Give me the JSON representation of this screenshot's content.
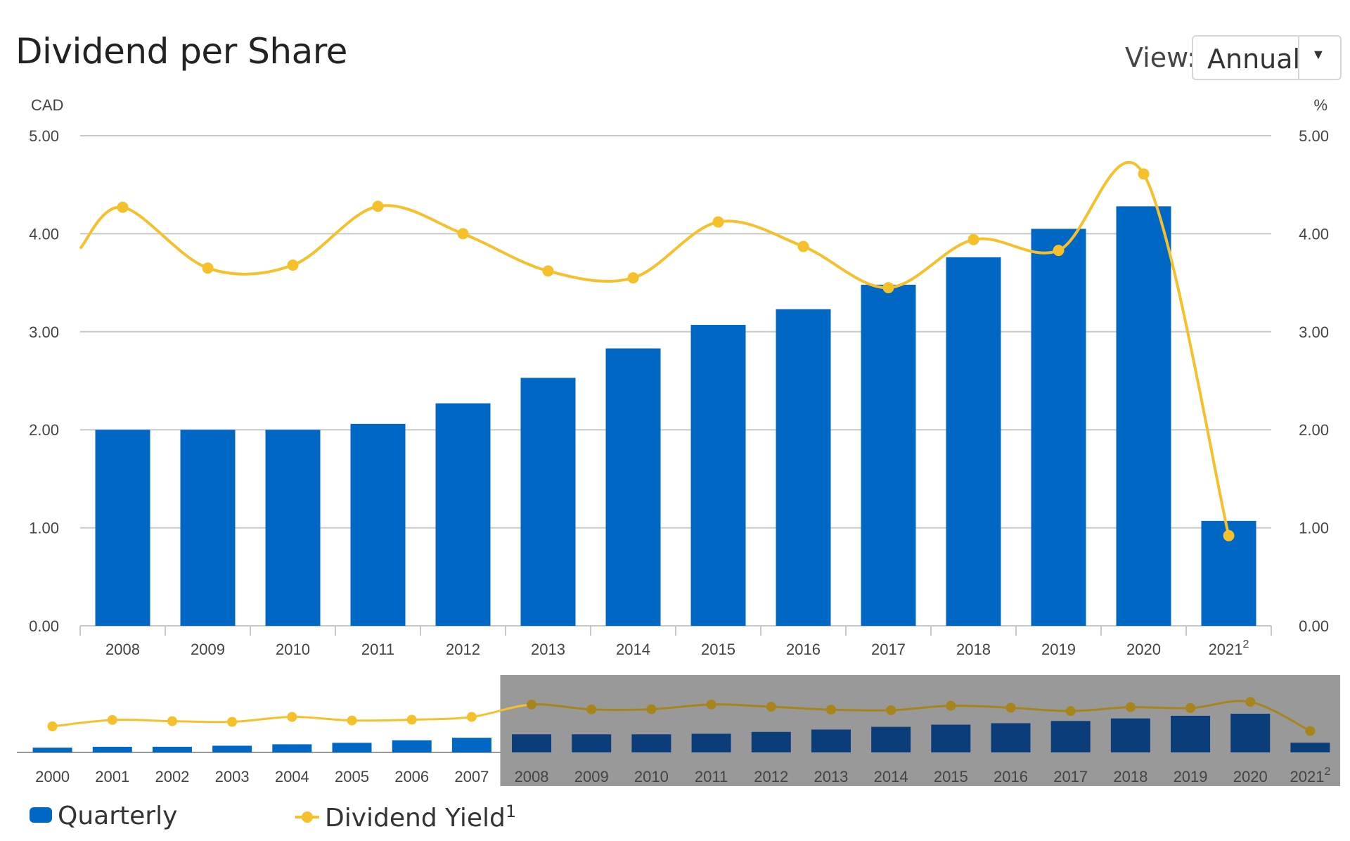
{
  "header": {
    "title": "Dividend per Share",
    "view_label": "View:",
    "view_value": "Annual"
  },
  "legend": {
    "quarterly": "Quarterly",
    "yield": "Dividend Yield",
    "yield_footnote": "1"
  },
  "colors": {
    "bar": "#0067c5",
    "bar_dark": "#0a3d7a",
    "line": "#f5c02a",
    "line_dark": "#a8841c",
    "navigator_shade": "#999999",
    "grid": "#c8c8c8"
  },
  "chart_data": {
    "type": "bar",
    "left_unit": "CAD",
    "right_unit": "%",
    "y_ticks": [
      "0.00",
      "1.00",
      "2.00",
      "3.00",
      "4.00",
      "5.00"
    ],
    "ylim": [
      0,
      5
    ],
    "categories": [
      "2008",
      "2009",
      "2010",
      "2011",
      "2012",
      "2013",
      "2014",
      "2015",
      "2016",
      "2017",
      "2018",
      "2019",
      "2020",
      "2021"
    ],
    "last_category_footnote": "2",
    "series": [
      {
        "name": "Quarterly",
        "type": "bar",
        "axis": "left",
        "values": [
          2.0,
          2.0,
          2.0,
          2.06,
          2.27,
          2.53,
          2.83,
          3.07,
          3.23,
          3.48,
          3.76,
          4.05,
          4.28,
          1.07
        ]
      },
      {
        "name": "Dividend Yield",
        "type": "line",
        "axis": "right",
        "values": [
          4.27,
          3.65,
          3.68,
          4.28,
          4.0,
          3.62,
          3.55,
          4.12,
          3.87,
          3.45,
          3.94,
          3.83,
          4.61,
          0.92
        ]
      }
    ],
    "navigator": {
      "categories": [
        "2000",
        "2001",
        "2002",
        "2003",
        "2004",
        "2005",
        "2006",
        "2007",
        "2008",
        "2009",
        "2010",
        "2011",
        "2012",
        "2013",
        "2014",
        "2015",
        "2016",
        "2017",
        "2018",
        "2019",
        "2020",
        "2021"
      ],
      "bar_values": [
        0.52,
        0.62,
        0.62,
        0.74,
        0.9,
        1.06,
        1.34,
        1.62,
        2.0,
        2.0,
        2.0,
        2.06,
        2.27,
        2.53,
        2.83,
        3.07,
        3.23,
        3.48,
        3.76,
        4.05,
        4.28,
        1.07
      ],
      "yield_values": [
        1.5,
        2.32,
        2.16,
        2.08,
        2.7,
        2.25,
        2.35,
        2.7,
        4.27,
        3.65,
        3.68,
        4.28,
        4.0,
        3.62,
        3.55,
        4.12,
        3.87,
        3.45,
        3.94,
        3.83,
        4.61,
        0.92
      ],
      "selected_range": [
        "2008",
        "2021"
      ]
    }
  }
}
